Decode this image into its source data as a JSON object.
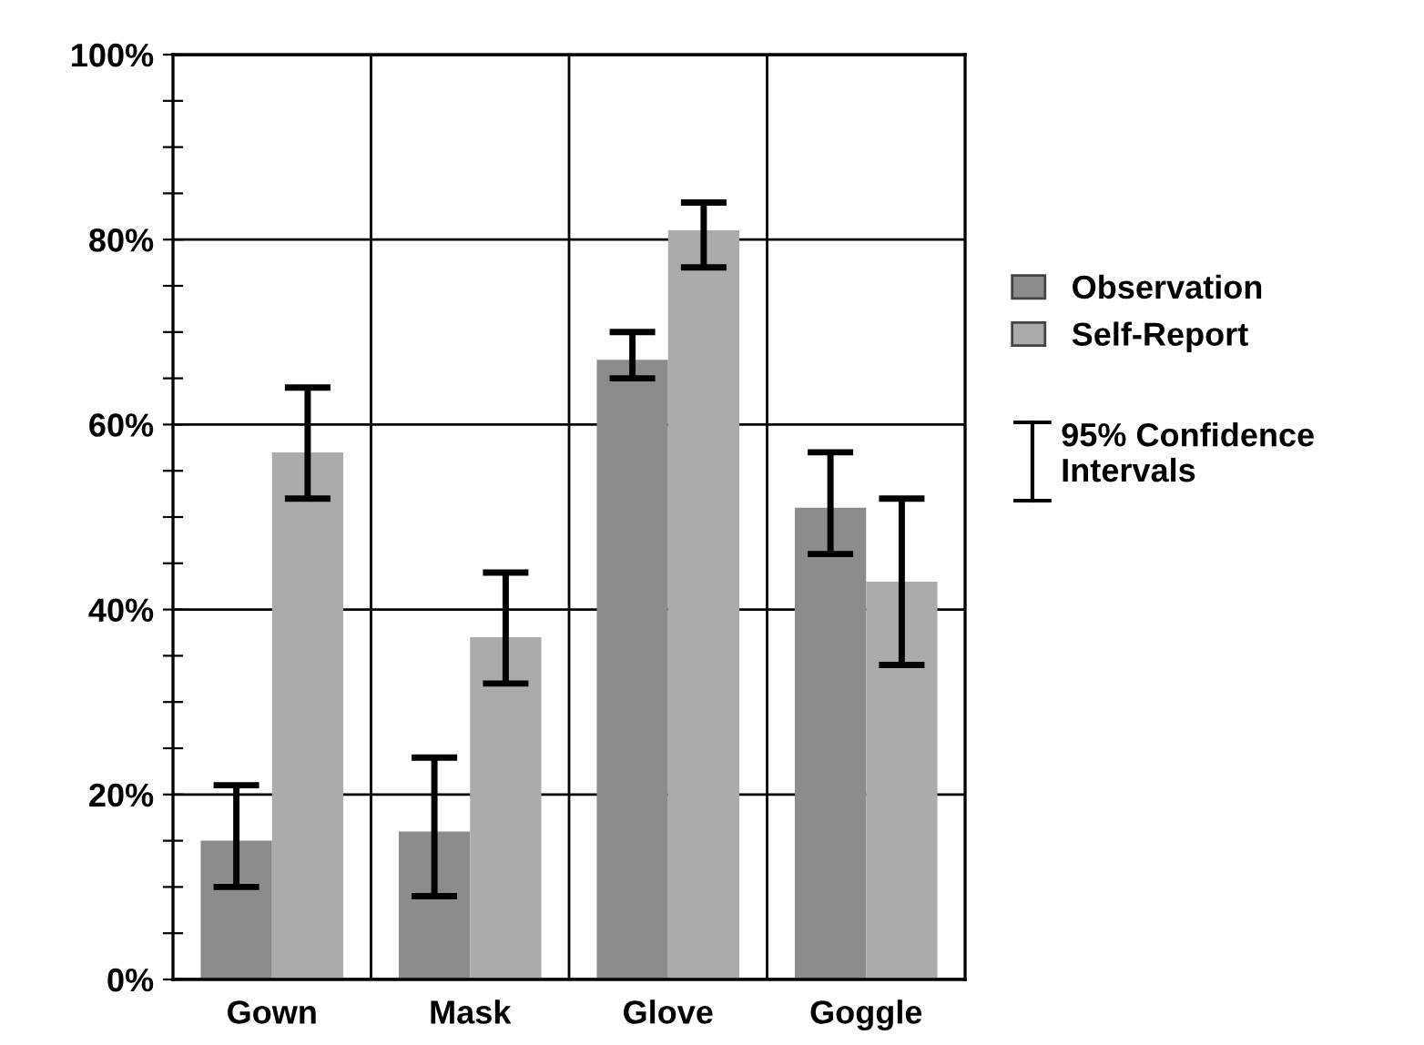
{
  "chart_data": {
    "type": "bar",
    "categories": [
      "Gown",
      "Mask",
      "Glove",
      "Goggle"
    ],
    "series": [
      {
        "name": "Observation",
        "color": "#8c8c8c",
        "values": [
          15,
          16,
          67,
          51
        ],
        "errors": [
          [
            10,
            21
          ],
          [
            9,
            24
          ],
          [
            65,
            70
          ],
          [
            46,
            57
          ]
        ]
      },
      {
        "name": "Self-Report",
        "color": "#ababab",
        "values": [
          57,
          37,
          81,
          43
        ],
        "errors": [
          [
            52,
            64
          ],
          [
            32,
            44
          ],
          [
            77,
            84
          ],
          [
            34,
            52
          ]
        ]
      }
    ],
    "annotations": [
      "95% Confidence Intervals"
    ],
    "ylim": [
      0,
      100
    ],
    "yticks": [
      {
        "value": 0,
        "label": "0%"
      },
      {
        "value": 5,
        "label": null
      },
      {
        "value": 10,
        "label": null
      },
      {
        "value": 15,
        "label": null
      },
      {
        "value": 20,
        "label": "20%"
      },
      {
        "value": 25,
        "label": null
      },
      {
        "value": 30,
        "label": null
      },
      {
        "value": 35,
        "label": null
      },
      {
        "value": 40,
        "label": "40%"
      },
      {
        "value": 45,
        "label": null
      },
      {
        "value": 50,
        "label": null
      },
      {
        "value": 55,
        "label": null
      },
      {
        "value": 60,
        "label": "60%"
      },
      {
        "value": 65,
        "label": null
      },
      {
        "value": 70,
        "label": null
      },
      {
        "value": 75,
        "label": null
      },
      {
        "value": 80,
        "label": "80%"
      },
      {
        "value": 85,
        "label": null
      },
      {
        "value": 90,
        "label": null
      },
      {
        "value": 95,
        "label": null
      },
      {
        "value": 100,
        "label": "100%"
      }
    ],
    "grid": true,
    "legend": "right"
  }
}
